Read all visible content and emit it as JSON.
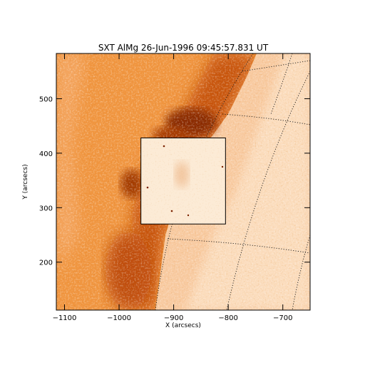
{
  "plot": {
    "title": "SXT AlMg 26-Jun-1996 09:45:57.831 UT",
    "xlabel": "X (arcsecs)",
    "ylabel": "Y (arcsecs)",
    "xlim": [
      -1115,
      -650
    ],
    "ylim": [
      112,
      583
    ],
    "xticks": [
      -1100,
      -1000,
      -900,
      -800,
      -700
    ],
    "yticks": [
      200,
      300,
      400,
      500
    ],
    "xtick_labels": [
      "−1100",
      "−1000",
      "−900",
      "−800",
      "−700"
    ],
    "ytick_labels": [
      "200",
      "300",
      "400",
      "500"
    ],
    "colors": {
      "background": "#ffffff",
      "frame": "#000000",
      "dark_emission": "#8a2a00",
      "mid_emission": "#e8741c",
      "faint_emission": "#fbe3c4",
      "inset_fill": "#fcebd6"
    },
    "inset_box_x": [
      -960,
      -805
    ],
    "inset_box_y": [
      270,
      428
    ]
  }
}
